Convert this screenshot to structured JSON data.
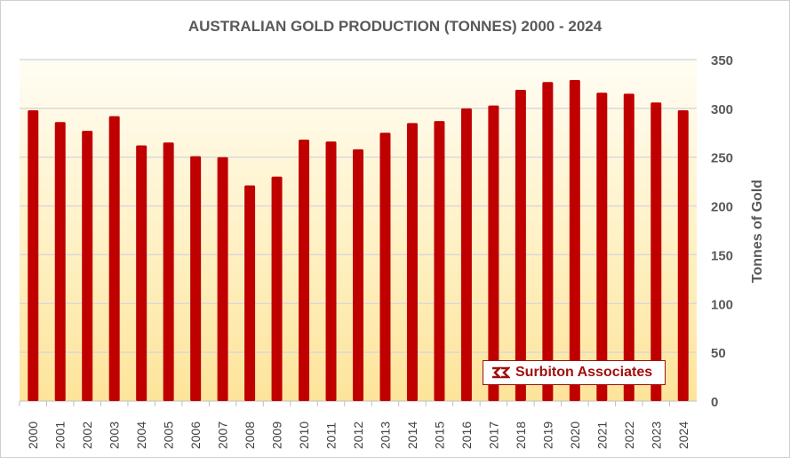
{
  "chart_data": {
    "type": "bar",
    "title": "AUSTRALIAN GOLD PRODUCTION (TONNES) 2000 - 2024",
    "xlabel": "",
    "ylabel": "Tonnes of Gold",
    "ylim": [
      0,
      350
    ],
    "yticks": [
      0,
      50,
      100,
      150,
      200,
      250,
      300,
      350
    ],
    "grid": true,
    "y_axis_side": "right",
    "categories": [
      "2000",
      "2001",
      "2002",
      "2003",
      "2004",
      "2005",
      "2006",
      "2007",
      "2008",
      "2009",
      "2010",
      "2011",
      "2012",
      "2013",
      "2014",
      "2015",
      "2016",
      "2017",
      "2018",
      "2019",
      "2020",
      "2021",
      "2022",
      "2023",
      "2024"
    ],
    "values": [
      298,
      286,
      277,
      292,
      262,
      265,
      251,
      250,
      221,
      230,
      268,
      266,
      258,
      275,
      285,
      287,
      300,
      303,
      319,
      327,
      329,
      316,
      315,
      306,
      298
    ],
    "bar_color": "#c00000"
  },
  "watermark": "Surbiton Associates"
}
